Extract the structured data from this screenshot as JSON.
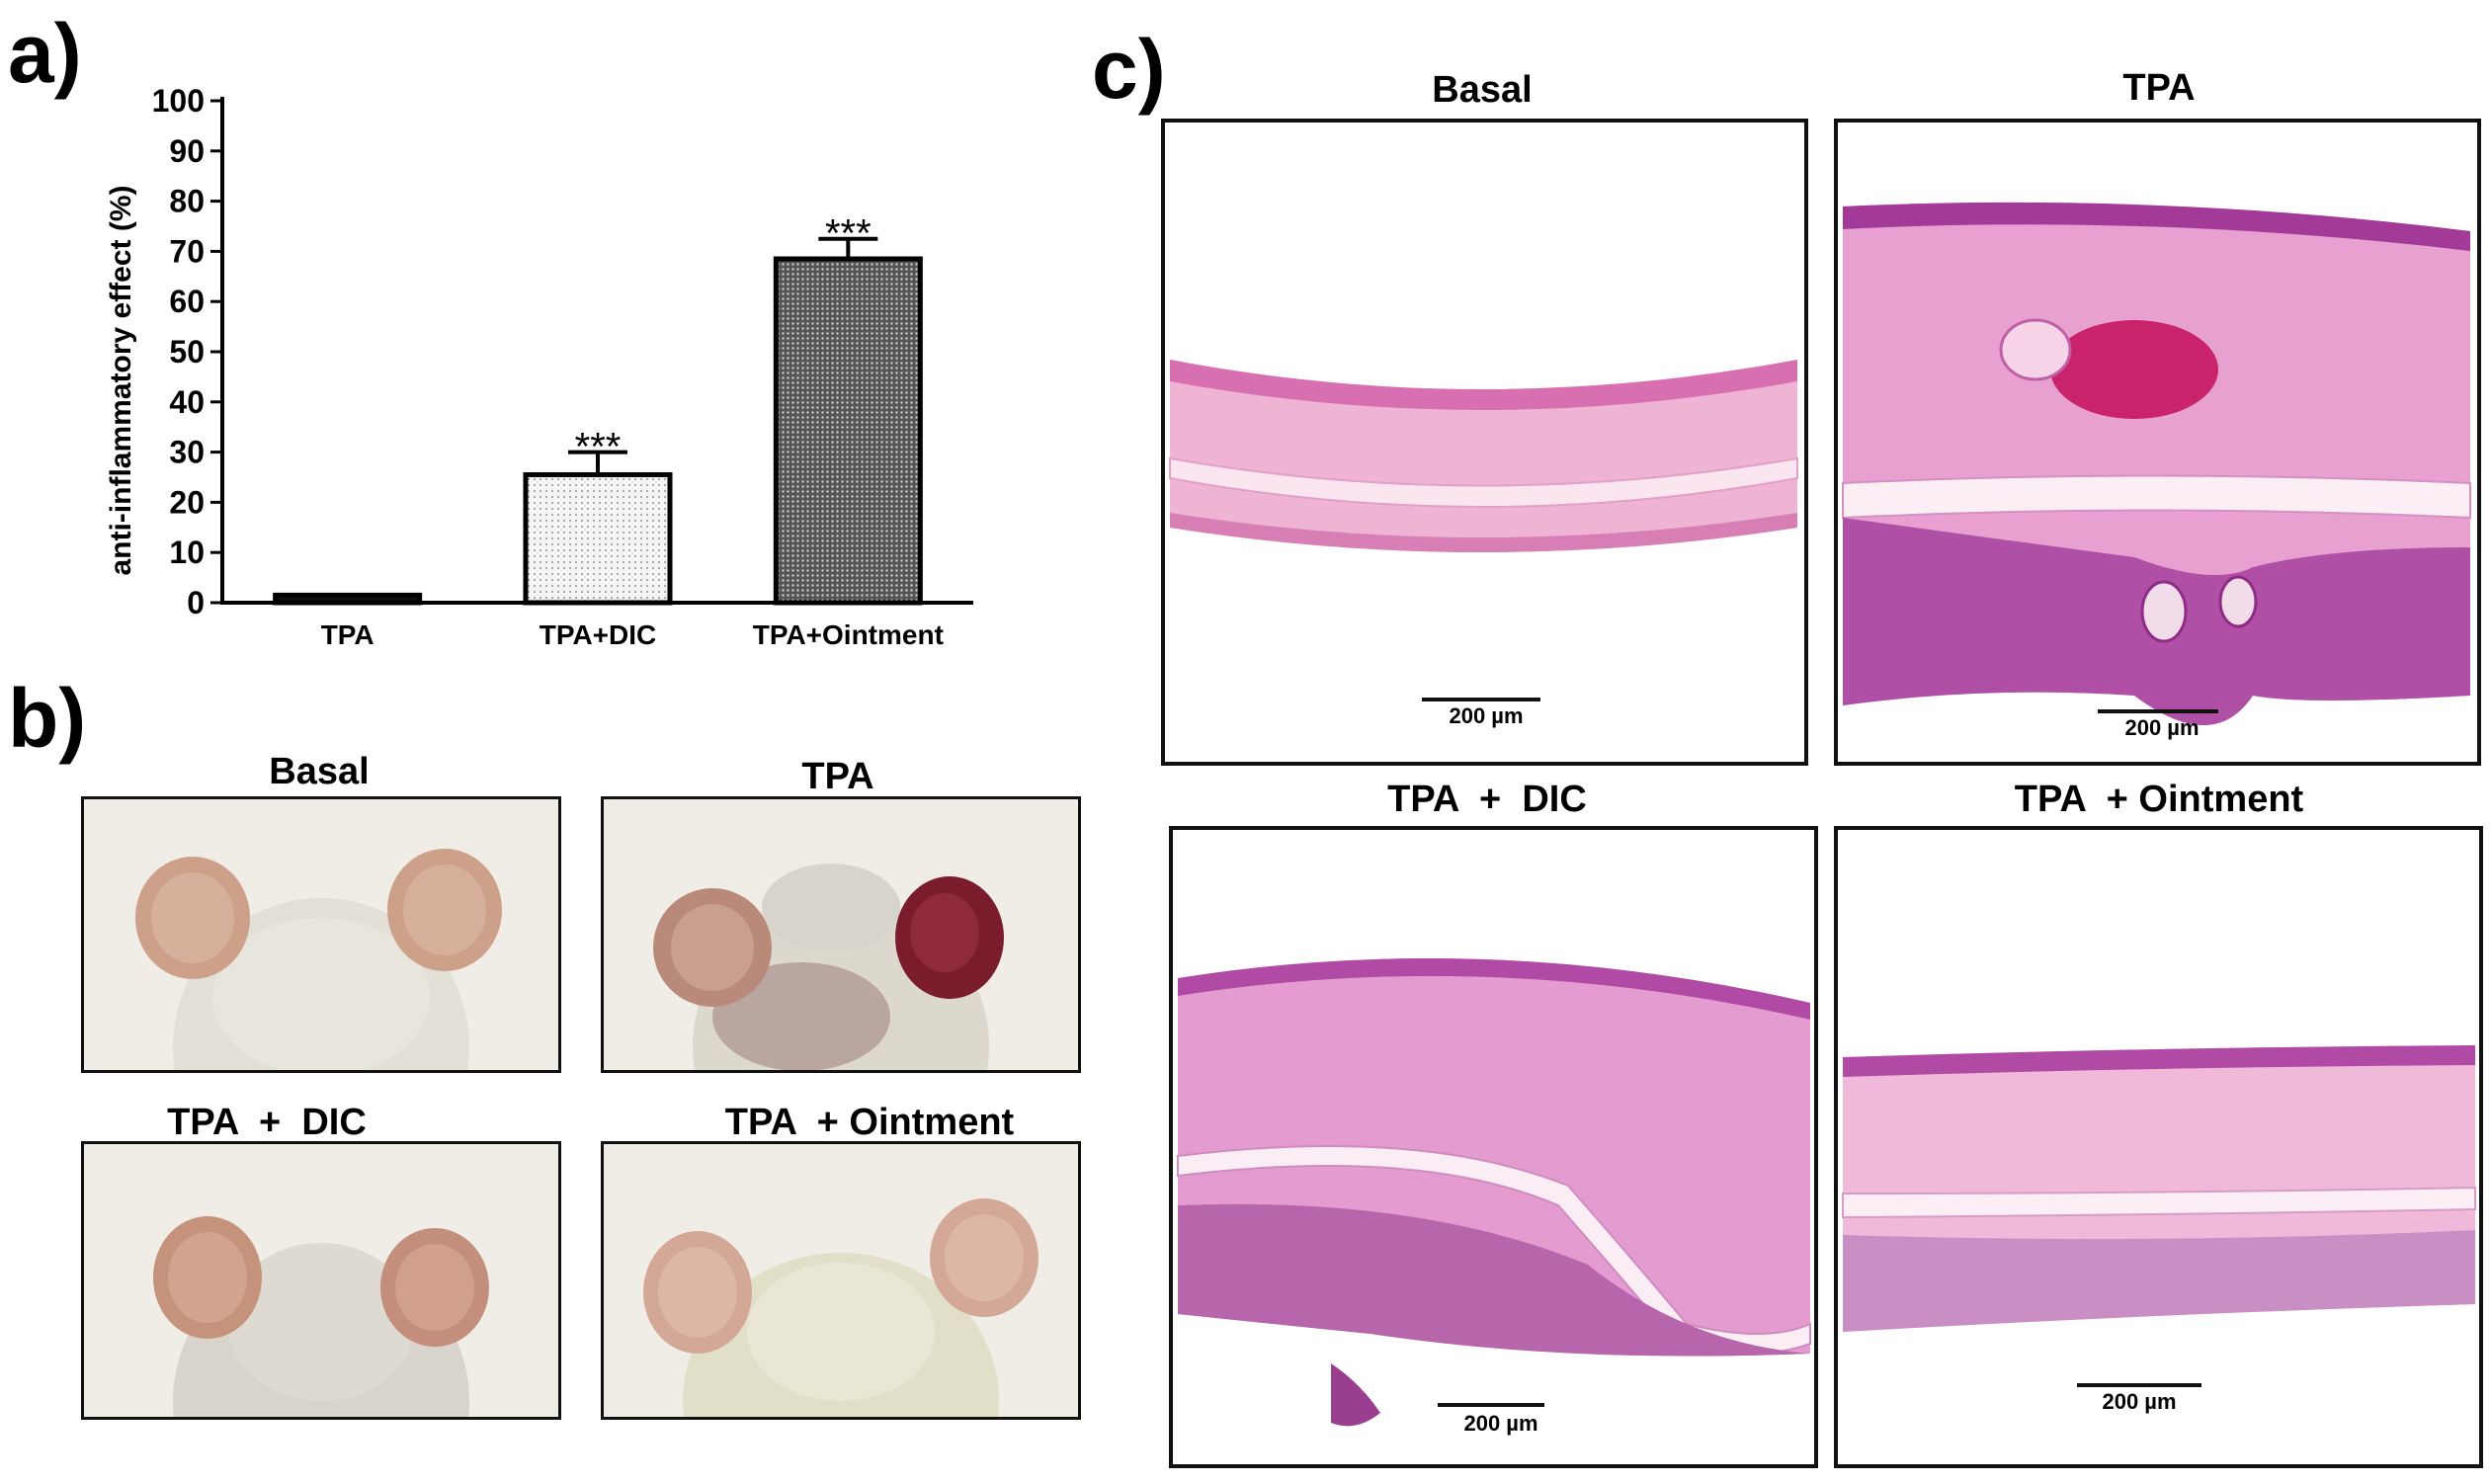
{
  "panels": {
    "a": "a)",
    "b": "b)",
    "c": "c)"
  },
  "chart_data": {
    "type": "bar",
    "categories": [
      "TPA",
      "TPA+DIC",
      "TPA+Ointment"
    ],
    "values": [
      1.5,
      25.5,
      68.5
    ],
    "errors": [
      0,
      4.5,
      4.0
    ],
    "significance": [
      "",
      "***",
      "***"
    ],
    "fills": [
      "solid-black",
      "light-dotted",
      "dark-dotted"
    ],
    "ylabel": "anti-inflammatory effect (%)",
    "xlabel": "",
    "ylim": [
      0,
      100
    ],
    "yticks": [
      0,
      10,
      20,
      30,
      40,
      50,
      60,
      70,
      80,
      90,
      100
    ],
    "grid": false
  },
  "photos": {
    "basal": "Basal",
    "tpa": "TPA",
    "tpa_dic": "TPA  +  DIC",
    "tpa_ointment": "TPA  + Ointment"
  },
  "histology": {
    "basal": "Basal",
    "tpa": "TPA",
    "tpa_dic": "TPA  +  DIC",
    "tpa_ointment": "TPA  + Ointment",
    "scale": "200 µm"
  },
  "colors": {
    "tissue_pink": "#e58fc6",
    "tissue_purple": "#b2479f",
    "ear_skin": "#c89a85",
    "fur": "#e4e1d8",
    "inflamed": "#7a1c2c"
  }
}
